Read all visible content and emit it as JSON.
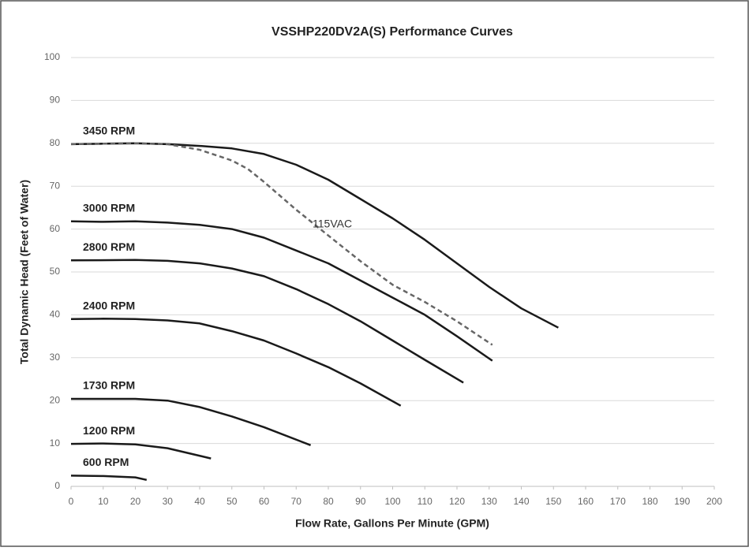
{
  "chart_data": {
    "type": "line",
    "title": "VSSHP220DV2A(S) Performance Curves",
    "x_label": "Flow Rate, Gallons Per Minute (GPM)",
    "y_label": "Total Dynamic Head (Feet of Water)",
    "xlim": [
      0,
      200
    ],
    "xticks": [
      0,
      10,
      20,
      30,
      40,
      50,
      60,
      70,
      80,
      90,
      100,
      110,
      120,
      130,
      140,
      150,
      160,
      170,
      180,
      190,
      200
    ],
    "ylim": [
      0,
      100
    ],
    "yticks": [
      0,
      10,
      20,
      30,
      40,
      50,
      60,
      70,
      80,
      90,
      100
    ],
    "grid": true,
    "series": [
      {
        "name": "3450 RPM",
        "color": "#1a1a1a",
        "dashed": false,
        "x": [
          0,
          10,
          20,
          30,
          40,
          50,
          60,
          70,
          80,
          90,
          100,
          110,
          120,
          130,
          140,
          151.5
        ],
        "values": [
          79.8,
          79.9,
          80,
          79.8,
          79.4,
          78.8,
          77.5,
          75,
          71.5,
          67,
          62.5,
          57.5,
          52,
          46.5,
          41.5,
          37
        ]
      },
      {
        "name": "115VAC",
        "color": "#666666",
        "dashed": true,
        "x": [
          0,
          10,
          20,
          30,
          40,
          50,
          55,
          60,
          70,
          80,
          90,
          100,
          110,
          120,
          131
        ],
        "values": [
          79.8,
          79.9,
          80,
          79.8,
          78.5,
          76,
          74,
          71,
          64.5,
          58.5,
          52.5,
          47,
          43,
          38.5,
          33
        ]
      },
      {
        "name": "3000 RPM",
        "color": "#1a1a1a",
        "dashed": false,
        "x": [
          0,
          10,
          20,
          30,
          40,
          50,
          55,
          60,
          70,
          80,
          90,
          100,
          110,
          120,
          131
        ],
        "values": [
          61.8,
          61.7,
          61.8,
          61.5,
          61,
          60,
          59,
          58,
          55,
          52,
          48,
          44,
          40,
          35,
          29.3
        ]
      },
      {
        "name": "2800 RPM",
        "color": "#1a1a1a",
        "dashed": false,
        "x": [
          0,
          20,
          30,
          40,
          50,
          60,
          70,
          80,
          90,
          100,
          110,
          122
        ],
        "values": [
          52.7,
          52.8,
          52.6,
          52,
          50.8,
          49,
          46,
          42.5,
          38.5,
          34,
          29.5,
          24.2
        ]
      },
      {
        "name": "2400 RPM",
        "color": "#1a1a1a",
        "dashed": false,
        "x": [
          0,
          10,
          20,
          30,
          40,
          50,
          60,
          70,
          80,
          90,
          102.5
        ],
        "values": [
          39,
          39.1,
          39,
          38.7,
          38,
          36.2,
          34,
          31,
          27.8,
          24,
          18.8
        ]
      },
      {
        "name": "1730 RPM",
        "color": "#1a1a1a",
        "dashed": false,
        "x": [
          0,
          10,
          20,
          30,
          40,
          50,
          60,
          74.5
        ],
        "values": [
          20.4,
          20.4,
          20.4,
          20,
          18.5,
          16.3,
          13.8,
          9.6
        ]
      },
      {
        "name": "1200 RPM",
        "color": "#1a1a1a",
        "dashed": false,
        "x": [
          0,
          10,
          20,
          30,
          43.5
        ],
        "values": [
          9.9,
          10,
          9.8,
          8.9,
          6.5
        ]
      },
      {
        "name": "600 RPM",
        "color": "#1a1a1a",
        "dashed": false,
        "x": [
          0,
          10,
          20,
          23.5
        ],
        "values": [
          2.5,
          2.4,
          2.1,
          1.5
        ]
      }
    ]
  }
}
